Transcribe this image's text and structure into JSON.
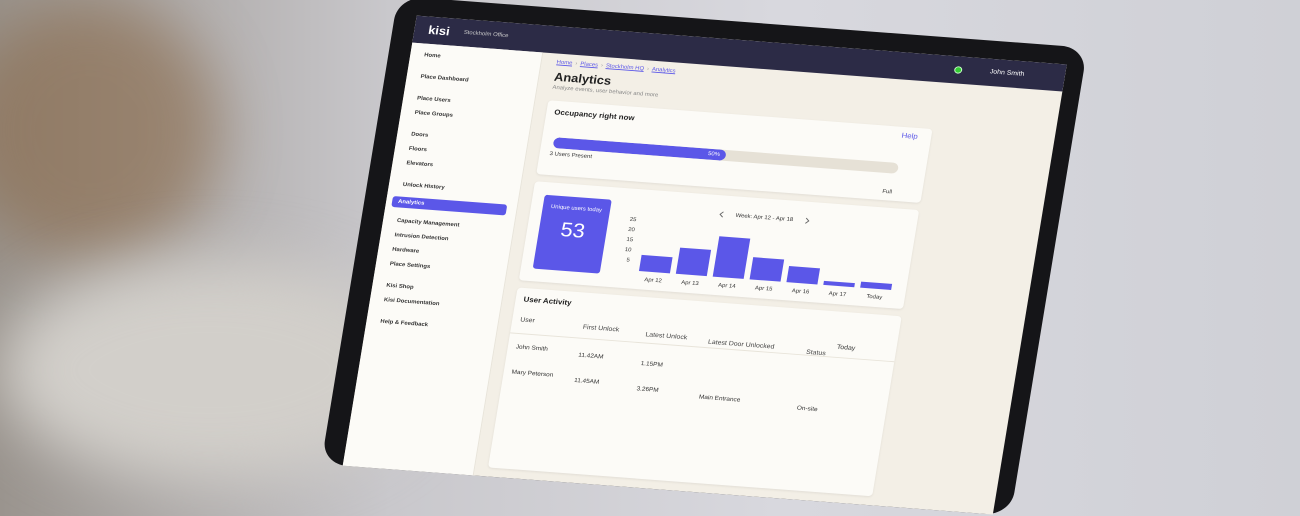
{
  "topbar": {
    "logo": "kisi",
    "office": "Stockholm Office",
    "user": "John Smith"
  },
  "sidebar": {
    "items": [
      "Home",
      "Place Dashboard",
      "Place Users",
      "Place Groups",
      "Doors",
      "Floors",
      "Elevators",
      "Unlock History",
      "Analytics",
      "Capacity Management",
      "Intrusion Detection",
      "Hardware",
      "Place Settings",
      "Kisi Shop",
      "Kisi Documentation",
      "Help & Feedback"
    ],
    "active": "Analytics"
  },
  "header": {
    "breadcrumb": [
      "Home",
      "Places",
      "Stockholm HQ",
      "Analytics"
    ],
    "title": "Analytics",
    "subtitle": "Analyze events, user behavior and more",
    "help": "Help"
  },
  "occupancy": {
    "title": "Occupancy right now",
    "present": "3 Users Present",
    "percent": 50,
    "percent_label": "50%",
    "full": "Full"
  },
  "unique": {
    "label": "Unique users today",
    "value": 53
  },
  "chart_data": {
    "type": "bar",
    "week": "Week: Apr 12 - Apr 18",
    "categories": [
      "Apr 12",
      "Apr 13",
      "Apr 14",
      "Apr 15",
      "Apr 16",
      "Apr 17",
      "Today"
    ],
    "values": [
      8,
      13,
      20,
      11,
      8,
      2,
      3
    ],
    "color": "#5b57e8",
    "ylim": [
      0,
      25
    ],
    "yticks": [
      25,
      20,
      15,
      10,
      5
    ]
  },
  "activity": {
    "title": "User Activity",
    "columns": [
      "User",
      "First Unlock",
      "Latest Unlock",
      "Latest Door Unlocked",
      "Status"
    ],
    "period": "Today",
    "rows": [
      [
        "John Smith",
        "11.42AM",
        "1.15PM",
        "",
        ""
      ],
      [
        "Mary Peterson",
        "11.45AM",
        "3.26PM",
        "Main Entrance",
        "On-site"
      ]
    ]
  }
}
